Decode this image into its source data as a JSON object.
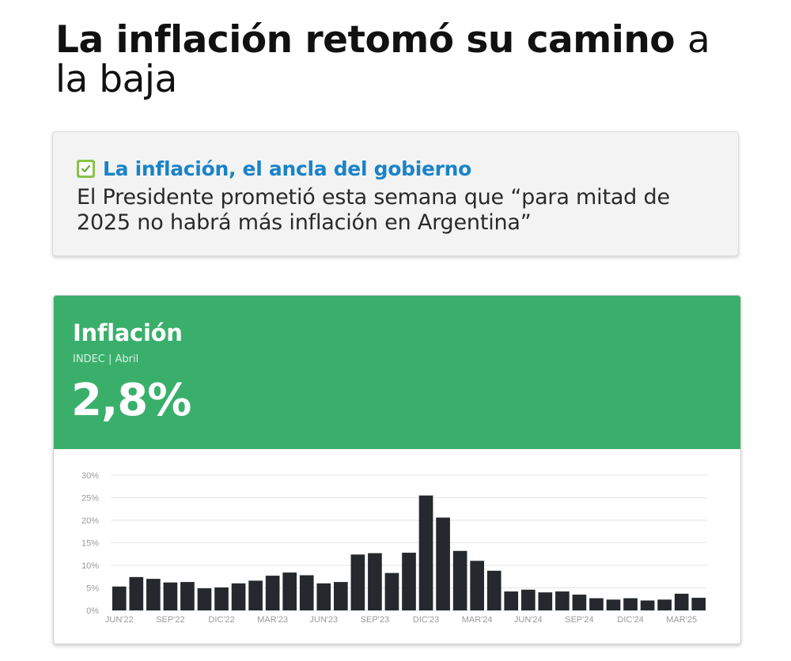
{
  "headline": {
    "bold_part": "La inflación retomó su camino",
    "normal_part": "a la baja"
  },
  "info_box": {
    "icon": "checkbox-check-icon",
    "title": "La inflación, el ancla del gobierno",
    "body": "El Presidente prometió esta semana que “para mitad de 2025 no habrá más inflación en Argentina”"
  },
  "card": {
    "title": "Inflación",
    "source": "INDEC | Abril",
    "value": "2,8%",
    "header_color": "#3aaf6c"
  },
  "chart_data": {
    "type": "bar",
    "bar_color": "#25292d",
    "ylim": [
      0,
      30
    ],
    "y_ticks": [
      "0%",
      "5%",
      "10%",
      "15%",
      "20%",
      "25%",
      "30%"
    ],
    "x_tick_labels": [
      {
        "index": 0,
        "label": "JUN'22"
      },
      {
        "index": 3,
        "label": "SEP'22"
      },
      {
        "index": 6,
        "label": "DIC'22"
      },
      {
        "index": 9,
        "label": "MAR'23"
      },
      {
        "index": 12,
        "label": "JUN'23"
      },
      {
        "index": 15,
        "label": "SEP'23"
      },
      {
        "index": 18,
        "label": "DIC'23"
      },
      {
        "index": 21,
        "label": "MAR'24"
      },
      {
        "index": 24,
        "label": "JUN'24"
      },
      {
        "index": 27,
        "label": "SEP'24"
      },
      {
        "index": 30,
        "label": "DIC'24"
      },
      {
        "index": 33,
        "label": "MAR'25"
      }
    ],
    "values": [
      5.3,
      7.4,
      7.0,
      6.2,
      6.3,
      4.9,
      5.1,
      6.0,
      6.6,
      7.7,
      8.4,
      7.8,
      6.0,
      6.3,
      12.4,
      12.7,
      8.3,
      12.8,
      25.5,
      20.6,
      13.2,
      11.0,
      8.8,
      4.2,
      4.6,
      4.0,
      4.2,
      3.5,
      2.7,
      2.4,
      2.7,
      2.2,
      2.4,
      3.7,
      2.8
    ]
  }
}
